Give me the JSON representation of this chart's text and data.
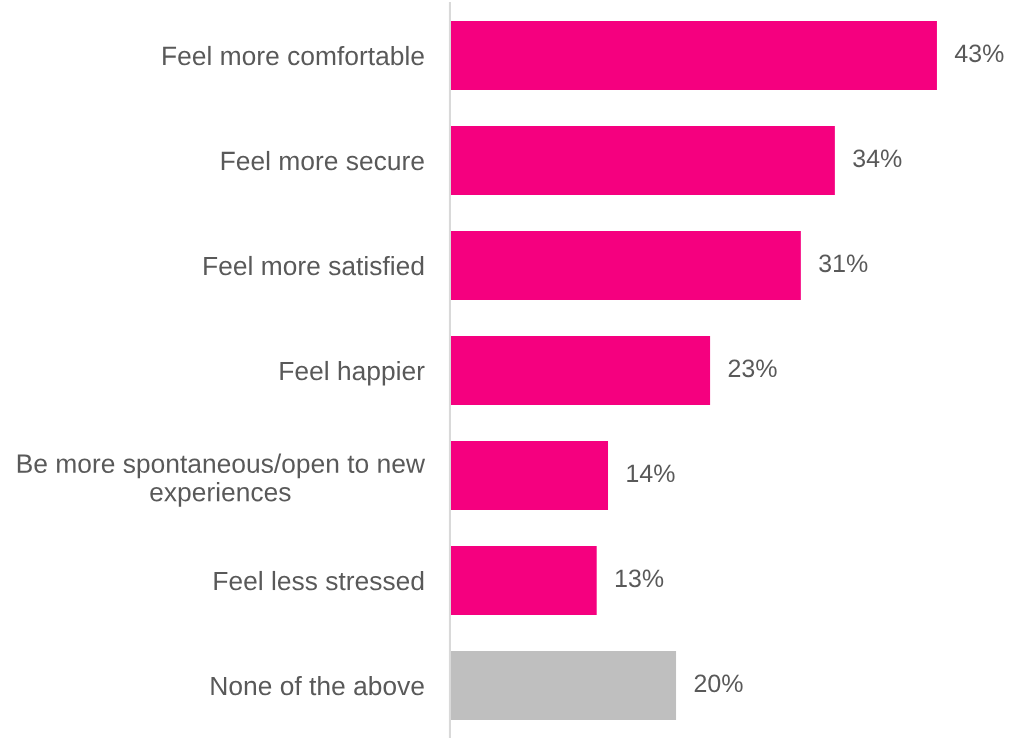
{
  "chart_data": {
    "type": "bar",
    "orientation": "horizontal",
    "categories": [
      "Feel more comfortable",
      "Feel more secure",
      "Feel more satisfied",
      "Feel happier",
      "Be more spontaneous/open to new\nexperiences",
      "Feel less stressed",
      "None of the above"
    ],
    "values": [
      43,
      34,
      31,
      23,
      14,
      13,
      20
    ],
    "colors": [
      "#f5007f",
      "#f5007f",
      "#f5007f",
      "#f5007f",
      "#f5007f",
      "#f5007f",
      "#bfbfbf"
    ],
    "value_labels": [
      "43%",
      "34%",
      "31%",
      "23%",
      "14%",
      "13%",
      "20%"
    ],
    "tick_labels": "y"
  }
}
